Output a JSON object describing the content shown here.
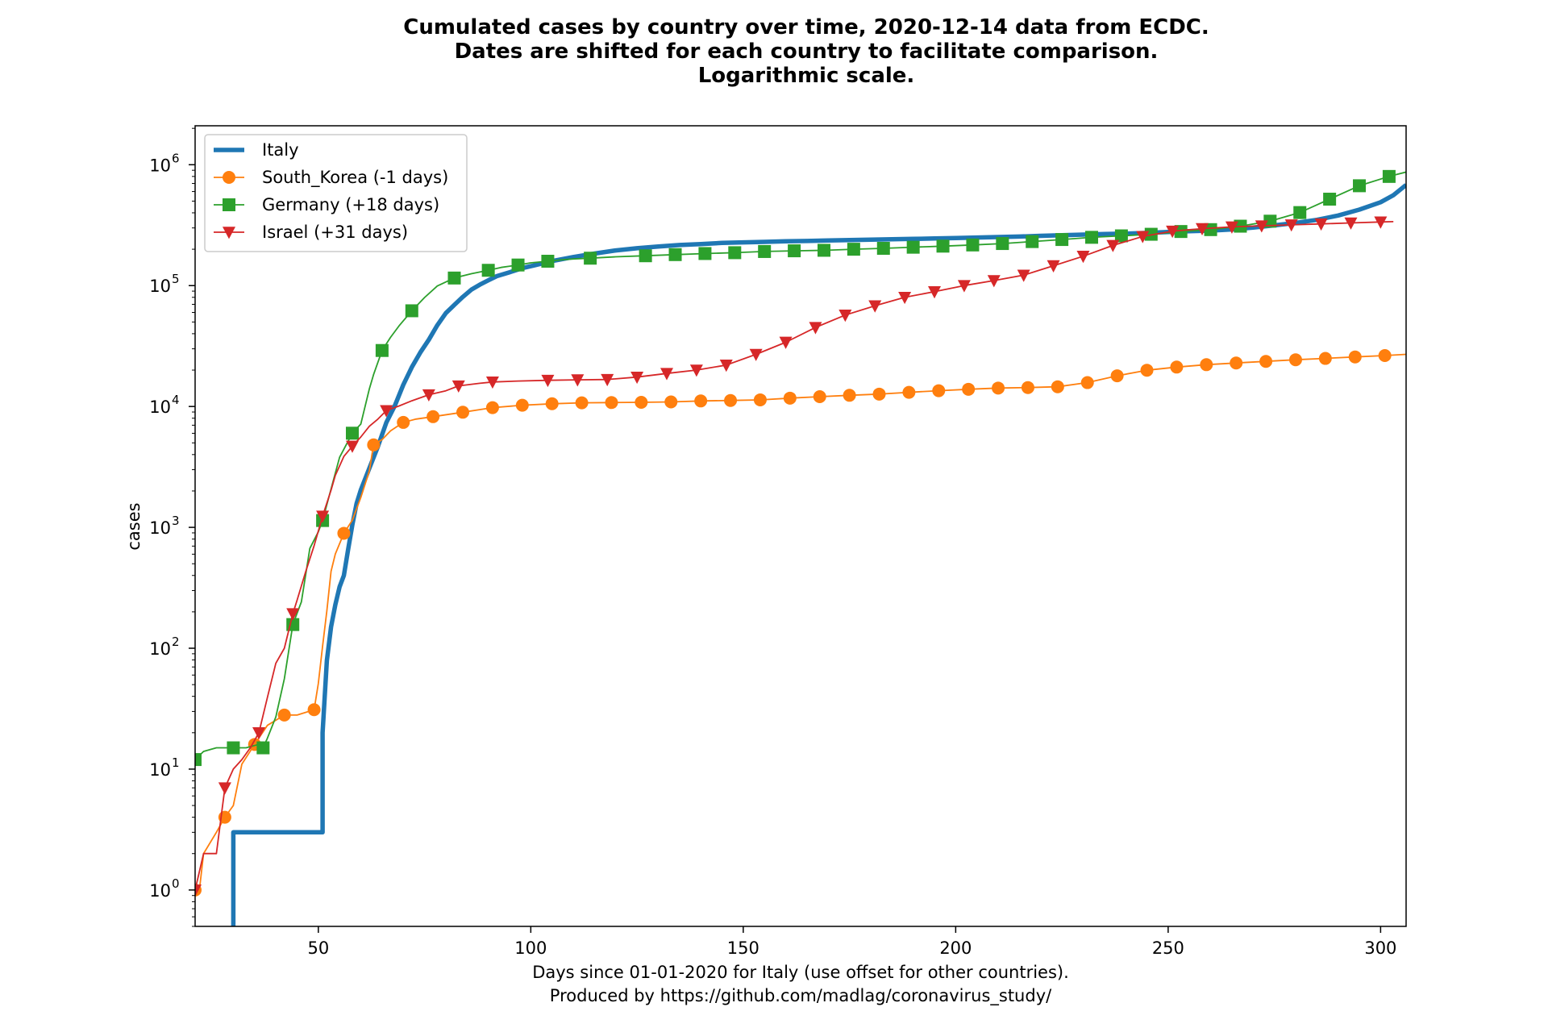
{
  "chart_data": {
    "type": "line",
    "title_lines": [
      "Cumulated cases by country over time, 2020-12-14 data from ECDC.",
      "Dates are shifted for each country to facilitate comparison.",
      "Logarithmic scale."
    ],
    "xlabel_lines": [
      "Days since 01-01-2020 for Italy (use offset for other countries).",
      "Produced by https://github.com/madlag/coronavirus_study/"
    ],
    "ylabel": "cases",
    "xlim": [
      21,
      306
    ],
    "ylim": [
      0.5,
      2100000
    ],
    "yscale": "log",
    "x_ticks": [
      50,
      100,
      150,
      200,
      250,
      300
    ],
    "x_tick_labels": [
      "50",
      "100",
      "150",
      "200",
      "250",
      "300"
    ],
    "y_ticks": [
      1,
      10,
      100,
      1000,
      10000,
      100000,
      1000000
    ],
    "y_tick_labels": [
      {
        "base": "10",
        "exp": "0"
      },
      {
        "base": "10",
        "exp": "1"
      },
      {
        "base": "10",
        "exp": "2"
      },
      {
        "base": "10",
        "exp": "3"
      },
      {
        "base": "10",
        "exp": "4"
      },
      {
        "base": "10",
        "exp": "5"
      },
      {
        "base": "10",
        "exp": "6"
      }
    ],
    "grid": false,
    "legend_position": "top-left",
    "series": [
      {
        "name": "Italy",
        "color": "#1f77b4",
        "marker": "none",
        "line_width": "thick",
        "points": [
          [
            30,
            0.3
          ],
          [
            30,
            3
          ],
          [
            51,
            3
          ],
          [
            51,
            20
          ],
          [
            52,
            79
          ],
          [
            53,
            150
          ],
          [
            54,
            229
          ],
          [
            55,
            322
          ],
          [
            56,
            400
          ],
          [
            57,
            650
          ],
          [
            58,
            1049
          ],
          [
            59,
            1577
          ],
          [
            60,
            2036
          ],
          [
            62,
            3089
          ],
          [
            64,
            4636
          ],
          [
            66,
            7375
          ],
          [
            68,
            10149
          ],
          [
            70,
            15113
          ],
          [
            72,
            21157
          ],
          [
            74,
            27980
          ],
          [
            76,
            35713
          ],
          [
            78,
            47021
          ],
          [
            80,
            59138
          ],
          [
            82,
            69176
          ],
          [
            84,
            80539
          ],
          [
            86,
            92472
          ],
          [
            88,
            101739
          ],
          [
            90,
            110574
          ],
          [
            92,
            119827
          ],
          [
            95,
            128948
          ],
          [
            98,
            139422
          ],
          [
            101,
            147577
          ],
          [
            105,
            159516
          ],
          [
            110,
            172434
          ],
          [
            115,
            183957
          ],
          [
            120,
            195351
          ],
          [
            125,
            203591
          ],
          [
            130,
            210717
          ],
          [
            135,
            216716
          ],
          [
            140,
            220829
          ],
          [
            145,
            225435
          ],
          [
            150,
            228006
          ],
          [
            155,
            230158
          ],
          [
            160,
            232664
          ],
          [
            165,
            234013
          ],
          [
            170,
            236142
          ],
          [
            175,
            237828
          ],
          [
            180,
            239961
          ],
          [
            185,
            241819
          ],
          [
            190,
            243344
          ],
          [
            195,
            245338
          ],
          [
            200,
            247537
          ],
          [
            205,
            249756
          ],
          [
            210,
            252235
          ],
          [
            215,
            254636
          ],
          [
            220,
            258136
          ],
          [
            225,
            261174
          ],
          [
            230,
            263949
          ],
          [
            235,
            266853
          ],
          [
            240,
            269214
          ],
          [
            245,
            272912
          ],
          [
            250,
            277634
          ],
          [
            255,
            281583
          ],
          [
            260,
            285021
          ],
          [
            265,
            291212
          ],
          [
            270,
            302537
          ],
          [
            275,
            315246
          ],
          [
            280,
            330221
          ],
          [
            285,
            350000
          ],
          [
            290,
            380000
          ],
          [
            295,
            425000
          ],
          [
            300,
            490000
          ],
          [
            303,
            560000
          ],
          [
            306,
            680000
          ]
        ]
      },
      {
        "name": "South_Korea (-1 days)",
        "color": "#ff7f0e",
        "marker": "circle",
        "points": [
          [
            21,
            1
          ],
          [
            22,
            1
          ],
          [
            23,
            2
          ],
          [
            26,
            3
          ],
          [
            28,
            4
          ],
          [
            30,
            5
          ],
          [
            32,
            11
          ],
          [
            35,
            16
          ],
          [
            38,
            23
          ],
          [
            42,
            28
          ],
          [
            45,
            28
          ],
          [
            49,
            31
          ],
          [
            50,
            51
          ],
          [
            51,
            104
          ],
          [
            52,
            204
          ],
          [
            53,
            433
          ],
          [
            54,
            602
          ],
          [
            56,
            893
          ],
          [
            58,
            1146
          ],
          [
            60,
            1766
          ],
          [
            62,
            2931
          ],
          [
            63,
            4812
          ],
          [
            65,
            5328
          ],
          [
            67,
            6284
          ],
          [
            70,
            7382
          ],
          [
            73,
            7869
          ],
          [
            77,
            8236
          ],
          [
            84,
            8961
          ],
          [
            91,
            9786
          ],
          [
            98,
            10237
          ],
          [
            105,
            10537
          ],
          [
            112,
            10718
          ],
          [
            119,
            10774
          ],
          [
            126,
            10822
          ],
          [
            133,
            10909
          ],
          [
            140,
            11110
          ],
          [
            147,
            11206
          ],
          [
            154,
            11344
          ],
          [
            161,
            11719
          ],
          [
            168,
            12051
          ],
          [
            175,
            12373
          ],
          [
            182,
            12653
          ],
          [
            189,
            13091
          ],
          [
            196,
            13512
          ],
          [
            203,
            13879
          ],
          [
            210,
            14203
          ],
          [
            217,
            14336
          ],
          [
            224,
            14562
          ],
          [
            231,
            15761
          ],
          [
            238,
            17945
          ],
          [
            245,
            19947
          ],
          [
            252,
            21177
          ],
          [
            259,
            22176
          ],
          [
            266,
            22893
          ],
          [
            273,
            23611
          ],
          [
            280,
            24353
          ],
          [
            287,
            24988
          ],
          [
            294,
            25698
          ],
          [
            301,
            26385
          ],
          [
            306,
            27000
          ]
        ]
      },
      {
        "name": "Germany (+18 days)",
        "color": "#2ca02c",
        "marker": "square",
        "points": [
          [
            21,
            12
          ],
          [
            23,
            14
          ],
          [
            26,
            15
          ],
          [
            30,
            15
          ],
          [
            33,
            15
          ],
          [
            36,
            16
          ],
          [
            37,
            15
          ],
          [
            38,
            18
          ],
          [
            40,
            27
          ],
          [
            42,
            56
          ],
          [
            44,
            157
          ],
          [
            46,
            242
          ],
          [
            48,
            670
          ],
          [
            50,
            917
          ],
          [
            51,
            1139
          ],
          [
            53,
            2078
          ],
          [
            55,
            3795
          ],
          [
            58,
            6012
          ],
          [
            60,
            7156
          ],
          [
            62,
            13979
          ],
          [
            63,
            18323
          ],
          [
            65,
            29056
          ],
          [
            67,
            37323
          ],
          [
            69,
            46512
          ],
          [
            72,
            61913
          ],
          [
            75,
            79696
          ],
          [
            78,
            99225
          ],
          [
            82,
            115523
          ],
          [
            86,
            125452
          ],
          [
            90,
            133830
          ],
          [
            93,
            141397
          ],
          [
            97,
            148046
          ],
          [
            100,
            154175
          ],
          [
            104,
            159119
          ],
          [
            107,
            163009
          ],
          [
            110,
            166091
          ],
          [
            114,
            168551
          ],
          [
            120,
            173152
          ],
          [
            127,
            176551
          ],
          [
            134,
            180458
          ],
          [
            141,
            184193
          ],
          [
            148,
            187184
          ],
          [
            155,
            191449
          ],
          [
            162,
            194036
          ],
          [
            169,
            195893
          ],
          [
            176,
            199919
          ],
          [
            183,
            203368
          ],
          [
            190,
            207707
          ],
          [
            197,
            212022
          ],
          [
            204,
            216903
          ],
          [
            211,
            222828
          ],
          [
            218,
            231292
          ],
          [
            225,
            240571
          ],
          [
            232,
            250799
          ],
          [
            239,
            257992
          ],
          [
            246,
            265857
          ],
          [
            253,
            280223
          ],
          [
            260,
            290471
          ],
          [
            267,
            310144
          ],
          [
            274,
            341223
          ],
          [
            281,
            402000
          ],
          [
            288,
            519000
          ],
          [
            295,
            670000
          ],
          [
            302,
            800000
          ],
          [
            306,
            870000
          ]
        ]
      },
      {
        "name": "Israel (+31 days)",
        "color": "#d62728",
        "marker": "triangle-down",
        "points": [
          [
            21,
            1
          ],
          [
            23,
            2
          ],
          [
            26,
            2
          ],
          [
            28,
            7
          ],
          [
            30,
            10
          ],
          [
            32,
            12
          ],
          [
            34,
            15
          ],
          [
            36,
            20
          ],
          [
            38,
            39
          ],
          [
            40,
            75
          ],
          [
            42,
            100
          ],
          [
            44,
            193
          ],
          [
            45,
            250
          ],
          [
            47,
            427
          ],
          [
            49,
            705
          ],
          [
            51,
            1238
          ],
          [
            53,
            2030
          ],
          [
            54,
            2693
          ],
          [
            56,
            3865
          ],
          [
            58,
            4695
          ],
          [
            60,
            5591
          ],
          [
            62,
            6857
          ],
          [
            64,
            7851
          ],
          [
            66,
            9248
          ],
          [
            69,
            10095
          ],
          [
            72,
            11145
          ],
          [
            76,
            12501
          ],
          [
            80,
            13491
          ],
          [
            83,
            14803
          ],
          [
            88,
            15555
          ],
          [
            91,
            15946
          ],
          [
            97,
            16246
          ],
          [
            104,
            16465
          ],
          [
            111,
            16617
          ],
          [
            118,
            16712
          ],
          [
            125,
            17495
          ],
          [
            132,
            18766
          ],
          [
            139,
            20000
          ],
          [
            146,
            22000
          ],
          [
            153,
            27000
          ],
          [
            160,
            34000
          ],
          [
            167,
            45000
          ],
          [
            174,
            57000
          ],
          [
            181,
            68000
          ],
          [
            188,
            80000
          ],
          [
            195,
            89000
          ],
          [
            202,
            100000
          ],
          [
            209,
            110000
          ],
          [
            216,
            122000
          ],
          [
            223,
            146000
          ],
          [
            230,
            175000
          ],
          [
            237,
            215000
          ],
          [
            244,
            255000
          ],
          [
            251,
            282000
          ],
          [
            258,
            296000
          ],
          [
            265,
            306000
          ],
          [
            272,
            312000
          ],
          [
            279,
            318000
          ],
          [
            286,
            324000
          ],
          [
            293,
            330000
          ],
          [
            300,
            336000
          ],
          [
            303,
            338000
          ]
        ]
      }
    ]
  }
}
